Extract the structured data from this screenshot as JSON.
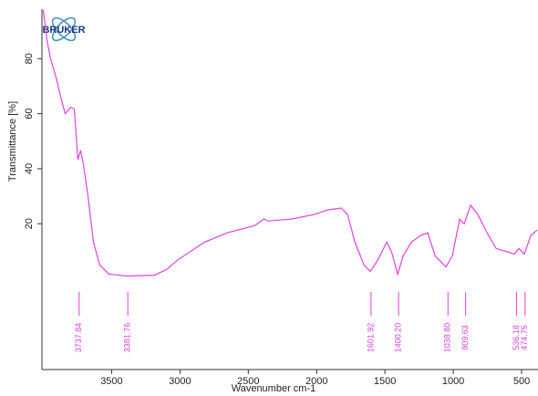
{
  "chart_data": {
    "type": "line",
    "logo": "BRUKER",
    "xlabel": "Wavenumber cm-1",
    "ylabel": "Transmittance [%]",
    "xlim": [
      4010,
      380
    ],
    "ylim": [
      -33,
      98
    ],
    "xticks": [
      3500,
      3000,
      2500,
      2000,
      1500,
      1000,
      500
    ],
    "yticks": [
      20,
      40,
      60,
      80
    ],
    "series": [
      {
        "color": "#e040e0",
        "x": [
          4000,
          3973,
          3947,
          3907,
          3867,
          3840,
          3800,
          3773,
          3747,
          3727,
          3707,
          3673,
          3633,
          3587,
          3520,
          3387,
          3187,
          3100,
          3020,
          2920,
          2820,
          2653,
          2453,
          2387,
          2353,
          2187,
          2020,
          1920,
          1820,
          1773,
          1720,
          1653,
          1607,
          1553,
          1487,
          1453,
          1407,
          1367,
          1307,
          1240,
          1187,
          1133,
          1053,
          1007,
          953,
          920,
          873,
          820,
          753,
          687,
          620,
          553,
          520,
          480,
          433,
          387
        ],
        "values": [
          97.7,
          86.7,
          80,
          73.3,
          65,
          60,
          62.3,
          61.7,
          43.3,
          46.7,
          41.7,
          30,
          13.3,
          5,
          1.7,
          1,
          1.3,
          3.3,
          6.7,
          10,
          13.3,
          16.7,
          19.3,
          21.7,
          21,
          21.7,
          23.3,
          25,
          25.7,
          23.3,
          13.3,
          5,
          2.7,
          6.7,
          13.3,
          10,
          1.7,
          8.3,
          13.3,
          15.7,
          16.7,
          8.3,
          4.3,
          8.3,
          21.7,
          20,
          26.7,
          23.3,
          16.7,
          11,
          10,
          9,
          11,
          9,
          15.7,
          17.7
        ]
      }
    ],
    "peaks": [
      {
        "value": 3737.84,
        "label": "3737.84"
      },
      {
        "value": 3381.76,
        "label": "3381.76"
      },
      {
        "value": 1601.92,
        "label": "1601.92"
      },
      {
        "value": 1400.2,
        "label": "1400.20"
      },
      {
        "value": 1038.8,
        "label": "1038.80"
      },
      {
        "value": 909.63,
        "label": "909.63"
      },
      {
        "value": 536.18,
        "label": "536.18"
      },
      {
        "value": 474.75,
        "label": "474.75"
      }
    ]
  }
}
